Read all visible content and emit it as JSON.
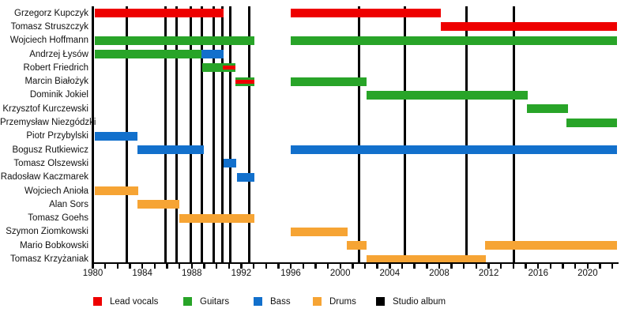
{
  "colors": {
    "lead_vocals": "#ee0000",
    "guitars": "#28a428",
    "bass": "#1270cc",
    "drums": "#f6a434",
    "album_line": "#000000",
    "axis": "#000000",
    "text": "#111111"
  },
  "legend": [
    {
      "key": "lead_vocals",
      "label": "Lead vocals"
    },
    {
      "key": "guitars",
      "label": "Guitars"
    },
    {
      "key": "bass",
      "label": "Bass"
    },
    {
      "key": "drums",
      "label": "Drums"
    },
    {
      "key": "album_line",
      "label": "Studio album"
    }
  ],
  "chart_data": {
    "type": "timeline",
    "x_axis": {
      "start": 1980,
      "end": 2022.4,
      "minor_tick_interval": 1,
      "label_interval": 4,
      "tick_labels": [
        "1980",
        "1984",
        "1988",
        "1992",
        "1996",
        "2000",
        "2004",
        "2008",
        "2012",
        "2016",
        "2020"
      ]
    },
    "grid": "off",
    "legend_position": "bottom",
    "album_lines": [
      1982.75,
      1985.85,
      1986.8,
      1987.9,
      1988.8,
      1989.8,
      1990.45,
      1991.1,
      1992.65,
      2001.55,
      2005.2,
      2010.2,
      2014.05
    ],
    "members": [
      {
        "name": "Grzegorz Kupczyk",
        "bars": [
          {
            "role": "lead_vocals",
            "start": 1980.15,
            "end": 1990.6
          },
          {
            "role": "lead_vocals",
            "start": 1996.0,
            "end": 2008.1
          }
        ]
      },
      {
        "name": "Tomasz Struszczyk",
        "bars": [
          {
            "role": "lead_vocals",
            "start": 2008.1,
            "end": 2022.4
          }
        ]
      },
      {
        "name": "Wojciech Hoffmann",
        "bars": [
          {
            "role": "guitars",
            "start": 1980.15,
            "end": 1993.05
          },
          {
            "role": "guitars",
            "start": 1996.0,
            "end": 2022.4
          }
        ]
      },
      {
        "name": "Andrzej Łysów",
        "bars": [
          {
            "role": "guitars",
            "start": 1980.15,
            "end": 1988.8
          },
          {
            "role": "bass",
            "start": 1988.8,
            "end": 1990.6
          }
        ]
      },
      {
        "name": "Robert Friedrich",
        "bars": [
          {
            "role": "guitars",
            "start": 1988.85,
            "end": 1991.55,
            "overlay": {
              "role": "lead_vocals",
              "start": 1990.5,
              "end": 1991.55
            }
          }
        ]
      },
      {
        "name": "Marcin Białożyk",
        "bars": [
          {
            "role": "guitars",
            "start": 1991.55,
            "end": 1993.05,
            "overlay": {
              "role": "lead_vocals",
              "start": 1991.55,
              "end": 1993.05
            }
          },
          {
            "role": "guitars",
            "start": 1996.0,
            "end": 2002.1
          }
        ]
      },
      {
        "name": "Dominik Jokiel",
        "bars": [
          {
            "role": "guitars",
            "start": 2002.1,
            "end": 2015.15
          }
        ]
      },
      {
        "name": "Krzysztof Kurczewski",
        "bars": [
          {
            "role": "guitars",
            "start": 2015.1,
            "end": 2018.4
          }
        ]
      },
      {
        "name": "Przemysław Niezgódzki",
        "bars": [
          {
            "role": "guitars",
            "start": 2018.3,
            "end": 2022.4
          }
        ]
      },
      {
        "name": "Piotr Przybylski",
        "bars": [
          {
            "role": "bass",
            "start": 1980.15,
            "end": 1983.6
          }
        ]
      },
      {
        "name": "Bogusz Rutkiewicz",
        "bars": [
          {
            "role": "bass",
            "start": 1983.6,
            "end": 1989.0
          },
          {
            "role": "bass",
            "start": 1996.0,
            "end": 2022.4
          }
        ]
      },
      {
        "name": "Tomasz Olszewski",
        "bars": [
          {
            "role": "bass",
            "start": 1990.6,
            "end": 1991.6
          }
        ]
      },
      {
        "name": "Radosław Kaczmarek",
        "bars": [
          {
            "role": "bass",
            "start": 1991.65,
            "end": 1993.05
          }
        ]
      },
      {
        "name": "Wojciech Anioła",
        "bars": [
          {
            "role": "drums",
            "start": 1980.15,
            "end": 1983.65
          }
        ]
      },
      {
        "name": "Alan Sors",
        "bars": [
          {
            "role": "drums",
            "start": 1983.6,
            "end": 1987.0
          }
        ]
      },
      {
        "name": "Tomasz Goehs",
        "bars": [
          {
            "role": "drums",
            "start": 1987.0,
            "end": 1993.05
          }
        ]
      },
      {
        "name": "Szymon Ziomkowski",
        "bars": [
          {
            "role": "drums",
            "start": 1996.0,
            "end": 2000.6
          }
        ]
      },
      {
        "name": "Mario Bobkowski",
        "bars": [
          {
            "role": "drums",
            "start": 2000.55,
            "end": 2002.1
          },
          {
            "role": "drums",
            "start": 2011.7,
            "end": 2022.4
          }
        ]
      },
      {
        "name": "Tomasz Krzyżaniak",
        "bars": [
          {
            "role": "drums",
            "start": 2002.1,
            "end": 2011.75
          }
        ]
      }
    ]
  }
}
